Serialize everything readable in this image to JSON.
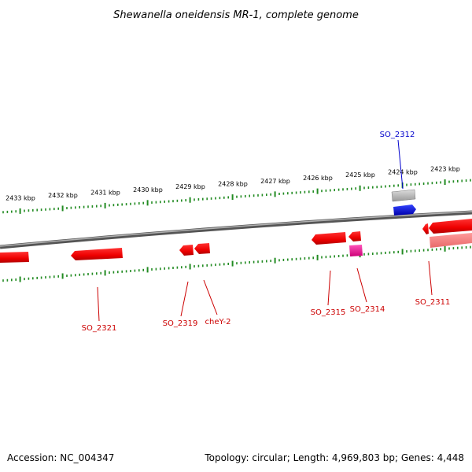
{
  "title": "Shewanella oneidensis MR-1, complete genome",
  "footer": {
    "accession": "Accession: NC_004347",
    "summary": "Topology: circular; Length: 4,969,803 bp; Genes: 4,448"
  },
  "colors": {
    "forward_cds": "#ff0000",
    "reverse_cds": "#ff0000",
    "rna": "#ff2299",
    "selected_gene": "#0000ee",
    "tick": "#228b22",
    "backbone": "#888888"
  },
  "kbp_labels": [
    "2433 kbp",
    "2432 kbp",
    "2431 kbp",
    "2430 kbp",
    "2429 kbp",
    "2428 kbp",
    "2427 kbp",
    "2426 kbp",
    "2425 kbp",
    "2424 kbp",
    "2423 kbp"
  ],
  "gene_labels": [
    {
      "id": "so2312",
      "text": "SO_2312",
      "color": "#0000cc"
    },
    {
      "id": "so2321",
      "text": "SO_2321",
      "color": "#cc0000"
    },
    {
      "id": "so2319",
      "text": "SO_2319",
      "color": "#cc0000"
    },
    {
      "id": "chey2",
      "text": "cheY-2",
      "color": "#cc0000"
    },
    {
      "id": "so2315",
      "text": "SO_2315",
      "color": "#cc0000"
    },
    {
      "id": "so2314",
      "text": "SO_2314",
      "color": "#cc0000"
    },
    {
      "id": "so2311",
      "text": "SO_2311",
      "color": "#cc0000"
    }
  ]
}
